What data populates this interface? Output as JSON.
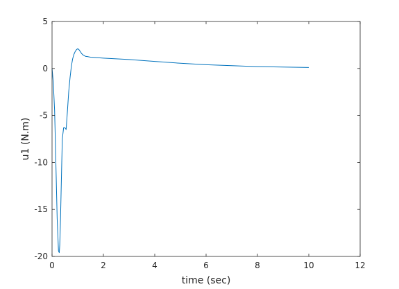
{
  "chart_data": {
    "type": "line",
    "xlabel": "time (sec)",
    "ylabel": "u1 (N.m)",
    "xlim": [
      0,
      12
    ],
    "ylim": [
      -20,
      5
    ],
    "xticks": [
      0,
      2,
      4,
      6,
      8,
      10,
      12
    ],
    "yticks": [
      5,
      0,
      -5,
      -10,
      -15,
      -20
    ],
    "xtick_labels": [
      "0",
      "2",
      "4",
      "6",
      "8",
      "10",
      "12"
    ],
    "ytick_labels": [
      "5",
      "0",
      "-5",
      "-10",
      "-15",
      "-20"
    ],
    "grid": false,
    "line_color": "#0072BD",
    "series": [
      {
        "x": [
          0,
          0.05,
          0.1,
          0.15,
          0.2,
          0.25,
          0.28,
          0.3,
          0.33,
          0.37,
          0.4,
          0.45,
          0.5,
          0.55,
          0.6,
          0.65,
          0.7,
          0.75,
          0.8,
          0.85,
          0.9,
          0.95,
          1.0,
          1.05,
          1.1,
          1.15,
          1.2,
          1.3,
          1.4,
          1.5,
          2,
          3,
          4,
          5,
          6,
          7,
          8,
          9,
          10
        ],
        "y": [
          0,
          -1.5,
          -4.5,
          -10,
          -16,
          -19.4,
          -19.6,
          -18.8,
          -16,
          -11,
          -7.5,
          -6.3,
          -6.3,
          -6.5,
          -4.5,
          -2.5,
          -1.0,
          0.2,
          1.0,
          1.5,
          1.8,
          2.0,
          2.1,
          2.0,
          1.8,
          1.6,
          1.45,
          1.3,
          1.25,
          1.2,
          1.1,
          0.95,
          0.75,
          0.55,
          0.4,
          0.3,
          0.2,
          0.15,
          0.1
        ]
      }
    ]
  }
}
